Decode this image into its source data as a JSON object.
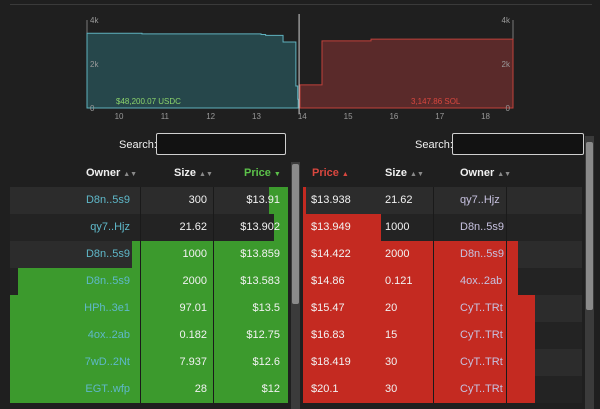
{
  "chart": {
    "y_ticks_left": [
      "4k",
      "2k",
      "0"
    ],
    "y_ticks_right": [
      "4k",
      "2k",
      "0"
    ],
    "x_ticks": [
      "10",
      "11",
      "12",
      "13",
      "14",
      "15",
      "16",
      "17",
      "18"
    ],
    "bid_total_label": "$48,200.07 USDC",
    "ask_total_label": "3,147.86 SOL",
    "colors": {
      "bid_fill": "#26474b",
      "bid_line": "#5fb0bd",
      "ask_fill": "#5a2a2a",
      "ask_line": "#c0413b",
      "bid_text": "#8bd36c",
      "ask_text": "#d9473f"
    }
  },
  "bids": {
    "search_label": "Search:",
    "search_value": "",
    "headers": {
      "owner": "Owner",
      "size": "Size",
      "price": "Price"
    },
    "rows": [
      {
        "owner": "D8n..5s9",
        "size": "300",
        "price": "$13.91",
        "depth": 0.07
      },
      {
        "owner": "qy7..Hjz",
        "size": "21.62",
        "price": "$13.902",
        "depth": 0.05
      },
      {
        "owner": "D8n..5s9",
        "size": "1000",
        "price": "$13.859",
        "depth": 0.56
      },
      {
        "owner": "D8n..5s9",
        "size": "2000",
        "price": "$13.583",
        "depth": 0.97
      },
      {
        "owner": "HPh..3e1",
        "size": "97.01",
        "price": "$13.5",
        "depth": 1.0
      },
      {
        "owner": "4ox..2ab",
        "size": "0.182",
        "price": "$12.75",
        "depth": 1.0
      },
      {
        "owner": "7wD..2Nt",
        "size": "7.937",
        "price": "$12.6",
        "depth": 1.0
      },
      {
        "owner": "EGT..wfp",
        "size": "28",
        "price": "$12",
        "depth": 1.0
      }
    ]
  },
  "asks": {
    "search_label": "Search:",
    "search_value": "",
    "headers": {
      "price": "Price",
      "size": "Size",
      "owner": "Owner"
    },
    "rows": [
      {
        "price": "$13.938",
        "size": "21.62",
        "owner": "qy7..Hjz",
        "depth": 0.01
      },
      {
        "price": "$13.949",
        "size": "1000",
        "owner": "D8n..5s9",
        "depth": 0.28
      },
      {
        "price": "$14.422",
        "size": "2000",
        "owner": "D8n..5s9",
        "depth": 0.77
      },
      {
        "price": "$14.86",
        "size": "0.121",
        "owner": "4ox..2ab",
        "depth": 0.77
      },
      {
        "price": "$15.47",
        "size": "20",
        "owner": "CyT..TRt",
        "depth": 0.83
      },
      {
        "price": "$16.83",
        "size": "15",
        "owner": "CyT..TRt",
        "depth": 0.83
      },
      {
        "price": "$18.419",
        "size": "30",
        "owner": "CyT..TRt",
        "depth": 0.83
      },
      {
        "price": "$20.1",
        "size": "30",
        "owner": "CyT..TRt",
        "depth": 0.83
      }
    ]
  },
  "chart_data": {
    "type": "area",
    "title": "",
    "xlabel": "",
    "ylabel": "",
    "xlim": [
      9.3,
      18.6
    ],
    "ylim": [
      0,
      4000
    ],
    "grid": false,
    "series": [
      {
        "name": "",
        "x": [
          9.3,
          10.3,
          10.5,
          13.1,
          13.2,
          13.5,
          13.58,
          13.86,
          13.9,
          13.91
        ],
        "y": [
          3400,
          3400,
          3370,
          3340,
          3300,
          3300,
          3000,
          1000,
          400,
          300
        ]
      },
      {
        "name": "",
        "x": [
          13.938,
          13.95,
          14.0,
          14.42,
          14.43,
          15.5,
          18.6
        ],
        "y": [
          30,
          1050,
          1050,
          1050,
          3050,
          3130,
          3150
        ]
      }
    ]
  }
}
